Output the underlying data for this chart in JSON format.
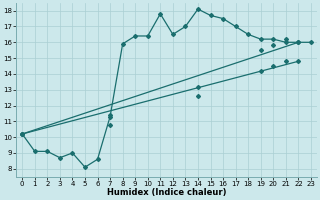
{
  "xlabel": "Humidex (Indice chaleur)",
  "ylabel": "",
  "xlim": [
    -0.5,
    23.5
  ],
  "ylim": [
    7.5,
    18.5
  ],
  "xticks": [
    0,
    1,
    2,
    3,
    4,
    5,
    6,
    7,
    8,
    9,
    10,
    11,
    12,
    13,
    14,
    15,
    16,
    17,
    18,
    19,
    20,
    21,
    22,
    23
  ],
  "yticks": [
    8,
    9,
    10,
    11,
    12,
    13,
    14,
    15,
    16,
    17,
    18
  ],
  "bg_color": "#cce8eb",
  "grid_color": "#aacfd4",
  "line_color": "#1a6e6e",
  "line1_x": [
    0,
    1,
    2,
    3,
    4,
    5,
    6,
    7,
    8,
    9,
    10,
    11,
    12,
    13,
    14,
    15,
    16,
    17,
    18,
    19,
    20,
    21,
    22,
    23
  ],
  "line1_y": [
    10.2,
    9.1,
    9.1,
    8.7,
    9.0,
    8.1,
    8.6,
    11.3,
    15.9,
    16.4,
    16.4,
    17.8,
    16.5,
    17.0,
    18.1,
    17.7,
    17.5,
    17.0,
    16.5,
    16.2,
    16.2,
    16.0,
    16.0,
    16.0
  ],
  "line2_x": [
    0,
    22
  ],
  "line2_y": [
    10.2,
    16.0
  ],
  "line3_x": [
    0,
    22
  ],
  "line3_y": [
    10.2,
    14.8
  ],
  "marker2_x": [
    0,
    7,
    14,
    19,
    20,
    21,
    22
  ],
  "marker2_y": [
    10.2,
    11.4,
    13.2,
    15.5,
    15.8,
    16.2,
    16.0
  ],
  "marker3_x": [
    0,
    7,
    14,
    19,
    20,
    21,
    22
  ],
  "marker3_y": [
    10.2,
    10.8,
    12.6,
    14.2,
    14.5,
    14.8,
    14.8
  ]
}
